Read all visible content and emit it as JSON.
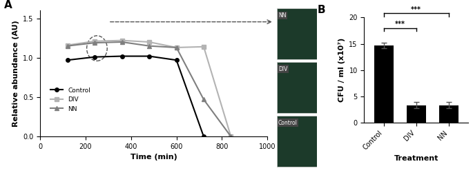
{
  "chart_data": [
    {
      "type": "line",
      "title": "A",
      "x_label": "Time (min)",
      "y_label": "Relative abundance (AU)",
      "x": [
        120,
        240,
        360,
        480,
        600,
        720,
        840
      ],
      "series": [
        {
          "name": "Control",
          "color": "#000000",
          "marker": "o",
          "line_style": "solid",
          "values": [
            0.97,
            1.01,
            1.02,
            1.02,
            0.97,
            0.0,
            null
          ]
        },
        {
          "name": "DIV",
          "color": "#b3b3b3",
          "marker": "s",
          "line_style": "solid",
          "values": [
            1.16,
            1.21,
            1.22,
            1.2,
            1.13,
            1.14,
            0.0
          ]
        },
        {
          "name": "NN",
          "color": "#7f7f7f",
          "marker": "^",
          "line_style": "solid",
          "values": [
            1.15,
            1.19,
            1.2,
            1.15,
            1.13,
            0.47,
            0.0
          ]
        }
      ],
      "xlim": [
        0,
        1000
      ],
      "xticks": [
        0,
        200,
        400,
        600,
        800,
        1000
      ],
      "ylim": [
        0,
        1.6
      ],
      "yticks": [
        {
          "value": 0,
          "label": "0.0"
        },
        {
          "value": 0.5,
          "label": "0.5"
        },
        {
          "value": 1.0,
          "label": "1.0"
        },
        {
          "value": 1.5,
          "label": "1.5"
        }
      ],
      "legend": "lower left",
      "grid": false,
      "annotations": [
        "NN",
        "DIV",
        "Control"
      ]
    },
    {
      "type": "bar",
      "title": "B",
      "x_label": "Treatment",
      "y_label": "CFU / ml (x10⁷)",
      "categories": [
        "Control",
        "DIV",
        "NN"
      ],
      "values": [
        14.7,
        3.3,
        3.3
      ],
      "errors": [
        0.5,
        0.6,
        0.6
      ],
      "color": "#000000",
      "ylim": [
        0,
        20
      ],
      "yticks": [
        0,
        5,
        10,
        15,
        20
      ],
      "grid": false,
      "annotations": [
        {
          "text": "***",
          "from": "Control",
          "to": "NN"
        },
        {
          "text": "***",
          "from": "Control",
          "to": "DIV"
        }
      ]
    }
  ]
}
